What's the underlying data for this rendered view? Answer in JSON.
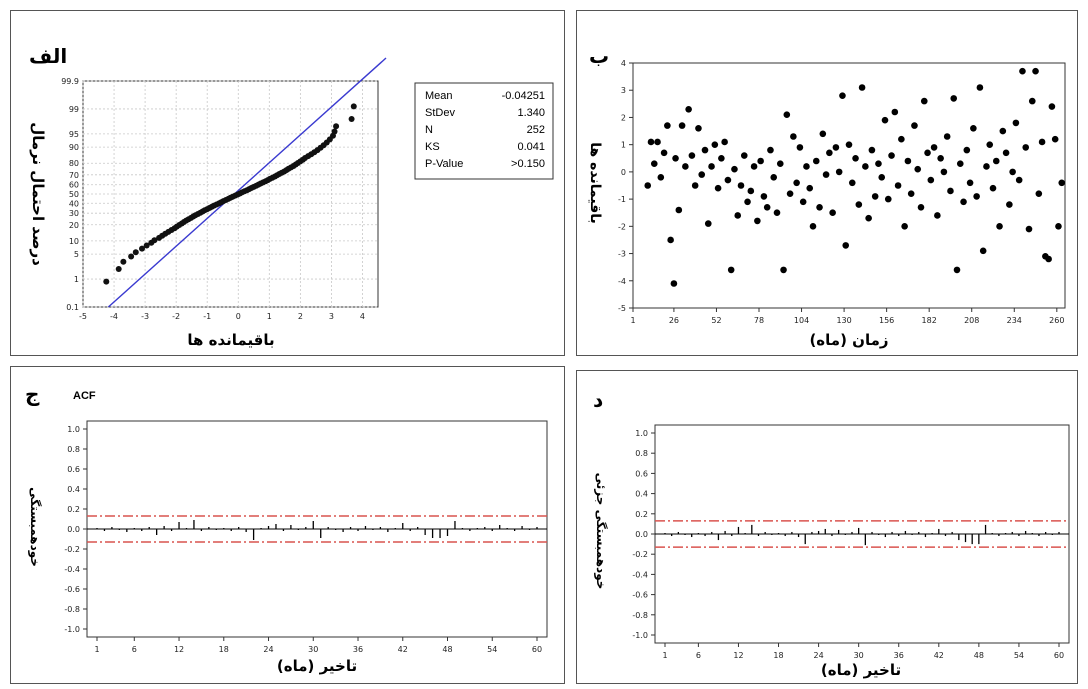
{
  "panels": {
    "a": {
      "letter": "الف",
      "xlabel": "باقیمانده ها",
      "ylabel": "درصد احتمال نرمال",
      "xticks": [
        "-5",
        "-4",
        "-3",
        "-2",
        "-1",
        "0",
        "1",
        "2",
        "3",
        "4"
      ],
      "yticks": [
        "0.1",
        "1",
        "5",
        "10",
        "20",
        "30",
        "40",
        "50",
        "60",
        "70",
        "80",
        "90",
        "95",
        "99",
        "99.9"
      ],
      "stats": [
        {
          "label": "Mean",
          "value": "-0.04251"
        },
        {
          "label": "StDev",
          "value": "1.340"
        },
        {
          "label": "N",
          "value": "252"
        },
        {
          "label": "KS",
          "value": "0.041"
        },
        {
          "label": "P-Value",
          "value": ">0.150"
        }
      ]
    },
    "b": {
      "letter": "ب",
      "xlabel": "زمان (ماه)",
      "ylabel": "باقیمانده ها",
      "xticks": [
        "1",
        "26",
        "52",
        "78",
        "104",
        "130",
        "156",
        "182",
        "208",
        "234",
        "260"
      ],
      "yticks": [
        "-5",
        "-4",
        "-3",
        "-2",
        "-1",
        "0",
        "1",
        "2",
        "3",
        "4"
      ]
    },
    "c": {
      "letter": "ج",
      "title": "ACF",
      "xlabel": "تاخیر (ماه)",
      "ylabel": "خودهمبستگی",
      "xticks": [
        "1",
        "6",
        "12",
        "18",
        "24",
        "30",
        "36",
        "42",
        "48",
        "54",
        "60"
      ],
      "yticks": [
        "-1.0",
        "-0.8",
        "-0.6",
        "-0.4",
        "-0.2",
        "0.0",
        "0.2",
        "0.4",
        "0.6",
        "0.8",
        "1.0"
      ]
    },
    "d": {
      "letter": "د",
      "xlabel": "تاخیر (ماه)",
      "ylabel": "خودهمبستگی جزئی",
      "xticks": [
        "1",
        "6",
        "12",
        "18",
        "24",
        "30",
        "36",
        "42",
        "48",
        "54",
        "60"
      ],
      "yticks": [
        "-1.0",
        "-0.8",
        "-0.6",
        "-0.4",
        "-0.2",
        "0.0",
        "0.2",
        "0.4",
        "0.6",
        "0.8",
        "1.0"
      ]
    }
  },
  "chart_data": [
    {
      "type": "scatter",
      "name": "normal-probability-plot",
      "xlim": [
        -5,
        4.5
      ],
      "ylim_percent": [
        0.1,
        99.9
      ],
      "fit_line": {
        "mean": -0.04251,
        "stdev": 1.34
      },
      "points_x": [
        -4.25,
        -3.85,
        -3.7,
        -3.45,
        -3.3,
        -3.1,
        -2.95,
        -2.8,
        -2.7,
        -2.55,
        -2.45,
        -2.35,
        -2.25,
        -2.15,
        -2.05,
        -1.98,
        -1.9,
        -1.82,
        -1.75,
        -1.68,
        -1.6,
        -1.52,
        -1.45,
        -1.38,
        -1.3,
        -1.22,
        -1.15,
        -1.08,
        -1.0,
        -0.92,
        -0.85,
        -0.78,
        -0.7,
        -0.62,
        -0.55,
        -0.48,
        -0.4,
        -0.32,
        -0.25,
        -0.18,
        -0.1,
        -0.02,
        0.05,
        0.12,
        0.2,
        0.28,
        0.35,
        0.42,
        0.5,
        0.58,
        0.65,
        0.72,
        0.8,
        0.88,
        0.95,
        1.02,
        1.1,
        1.18,
        1.25,
        1.32,
        1.4,
        1.48,
        1.55,
        1.62,
        1.7,
        1.78,
        1.85,
        1.92,
        2.0,
        2.08,
        2.15,
        2.25,
        2.35,
        2.45,
        2.55,
        2.65,
        2.75,
        2.85,
        2.95,
        3.05,
        3.1,
        3.15,
        3.65,
        3.72
      ]
    },
    {
      "type": "scatter",
      "name": "residuals-vs-time",
      "xlim": [
        1,
        265
      ],
      "ylim": [
        -5,
        4
      ],
      "x": [
        10,
        12,
        14,
        16,
        18,
        20,
        22,
        24,
        26,
        27,
        29,
        31,
        33,
        35,
        37,
        39,
        41,
        43,
        45,
        47,
        49,
        51,
        53,
        55,
        57,
        59,
        61,
        63,
        65,
        67,
        69,
        71,
        73,
        75,
        77,
        79,
        81,
        83,
        85,
        87,
        89,
        91,
        93,
        95,
        97,
        99,
        101,
        103,
        105,
        107,
        109,
        111,
        113,
        115,
        117,
        119,
        121,
        123,
        125,
        127,
        129,
        131,
        133,
        135,
        137,
        139,
        141,
        143,
        145,
        147,
        149,
        151,
        153,
        155,
        157,
        159,
        161,
        163,
        165,
        167,
        169,
        171,
        173,
        175,
        177,
        179,
        181,
        183,
        185,
        187,
        189,
        191,
        193,
        195,
        197,
        199,
        201,
        203,
        205,
        207,
        209,
        211,
        213,
        215,
        217,
        219,
        221,
        223,
        225,
        227,
        229,
        231,
        233,
        235,
        237,
        239,
        241,
        243,
        245,
        247,
        249,
        251,
        253,
        255,
        257,
        259,
        261,
        263
      ],
      "y": [
        -0.5,
        1.1,
        0.3,
        1.1,
        -0.2,
        0.7,
        1.7,
        -2.5,
        -4.1,
        0.5,
        -1.4,
        1.7,
        0.2,
        2.3,
        0.6,
        -0.5,
        1.6,
        -0.1,
        0.8,
        -1.9,
        0.2,
        1.0,
        -0.6,
        0.5,
        1.1,
        -0.3,
        -3.6,
        0.1,
        -1.6,
        -0.5,
        0.6,
        -1.1,
        -0.7,
        0.2,
        -1.8,
        0.4,
        -0.9,
        -1.3,
        0.8,
        -0.2,
        -1.5,
        0.3,
        -3.6,
        2.1,
        -0.8,
        1.3,
        -0.4,
        0.9,
        -1.1,
        0.2,
        -0.6,
        -2.0,
        0.4,
        -1.3,
        1.4,
        -0.1,
        0.7,
        -1.5,
        0.9,
        0.0,
        2.8,
        -2.7,
        1.0,
        -0.4,
        0.5,
        -1.2,
        3.1,
        0.2,
        -1.7,
        0.8,
        -0.9,
        0.3,
        -0.2,
        1.9,
        -1.0,
        0.6,
        2.2,
        -0.5,
        1.2,
        -2.0,
        0.4,
        -0.8,
        1.7,
        0.1,
        -1.3,
        2.6,
        0.7,
        -0.3,
        0.9,
        -1.6,
        0.5,
        0.0,
        1.3,
        -0.7,
        2.7,
        -3.6,
        0.3,
        -1.1,
        0.8,
        -0.4,
        1.6,
        -0.9,
        3.1,
        -2.9,
        0.2,
        1.0,
        -0.6,
        0.4,
        -2.0,
        1.5,
        0.7,
        -1.2,
        0.0,
        1.8,
        -0.3,
        3.7,
        0.9,
        -2.1,
        2.6,
        3.7,
        -0.8,
        1.1,
        -3.1,
        -3.2,
        2.4,
        1.2,
        -2.0,
        -0.4
      ]
    },
    {
      "type": "bar",
      "name": "ACF",
      "title": "ACF",
      "lags": [
        1,
        2,
        3,
        4,
        5,
        6,
        7,
        8,
        9,
        10,
        11,
        12,
        13,
        14,
        15,
        16,
        17,
        18,
        19,
        20,
        21,
        22,
        23,
        24,
        25,
        26,
        27,
        28,
        29,
        30,
        31,
        32,
        33,
        34,
        35,
        36,
        37,
        38,
        39,
        40,
        41,
        42,
        43,
        44,
        45,
        46,
        47,
        48,
        49,
        50,
        51,
        52,
        53,
        54,
        55,
        56,
        57,
        58,
        59,
        60
      ],
      "values": [
        0.01,
        -0.02,
        0.02,
        -0.01,
        -0.03,
        0.01,
        -0.02,
        0.02,
        -0.06,
        0.03,
        -0.02,
        0.07,
        0.01,
        0.09,
        -0.02,
        0.02,
        -0.01,
        0.01,
        -0.02,
        0.02,
        -0.03,
        -0.11,
        0.01,
        0.03,
        0.05,
        -0.02,
        0.04,
        -0.01,
        0.02,
        0.08,
        -0.09,
        0.02,
        -0.01,
        -0.03,
        0.02,
        -0.02,
        0.03,
        -0.01,
        0.02,
        -0.03,
        0.01,
        0.06,
        -0.02,
        0.02,
        -0.06,
        -0.09,
        -0.09,
        -0.07,
        0.08,
        0.01,
        -0.02,
        0.01,
        0.02,
        -0.02,
        0.04,
        0.01,
        -0.02,
        0.03,
        -0.01,
        0.02
      ],
      "ylim": [
        -1.0,
        1.0
      ],
      "confidence_bound": 0.13
    },
    {
      "type": "bar",
      "name": "PACF",
      "lags": [
        1,
        2,
        3,
        4,
        5,
        6,
        7,
        8,
        9,
        10,
        11,
        12,
        13,
        14,
        15,
        16,
        17,
        18,
        19,
        20,
        21,
        22,
        23,
        24,
        25,
        26,
        27,
        28,
        29,
        30,
        31,
        32,
        33,
        34,
        35,
        36,
        37,
        38,
        39,
        40,
        41,
        42,
        43,
        44,
        45,
        46,
        47,
        48,
        49,
        50,
        51,
        52,
        53,
        54,
        55,
        56,
        57,
        58,
        59,
        60
      ],
      "values": [
        0.01,
        -0.02,
        0.02,
        -0.01,
        -0.03,
        0.01,
        -0.02,
        0.02,
        -0.06,
        0.03,
        -0.02,
        0.07,
        0.01,
        0.09,
        -0.02,
        0.02,
        -0.01,
        0.01,
        -0.02,
        0.02,
        -0.03,
        -0.1,
        0.02,
        0.03,
        0.05,
        -0.02,
        0.04,
        -0.01,
        0.02,
        0.06,
        -0.11,
        0.02,
        -0.01,
        -0.03,
        0.02,
        -0.02,
        0.03,
        -0.01,
        0.02,
        -0.03,
        0.01,
        0.05,
        -0.02,
        0.02,
        -0.06,
        -0.08,
        -0.1,
        -0.1,
        0.09,
        0.01,
        -0.02,
        0.01,
        0.02,
        -0.02,
        0.03,
        0.01,
        -0.02,
        0.02,
        -0.01,
        0.02
      ],
      "ylim": [
        -1.0,
        1.0
      ],
      "confidence_bound": 0.13
    }
  ]
}
